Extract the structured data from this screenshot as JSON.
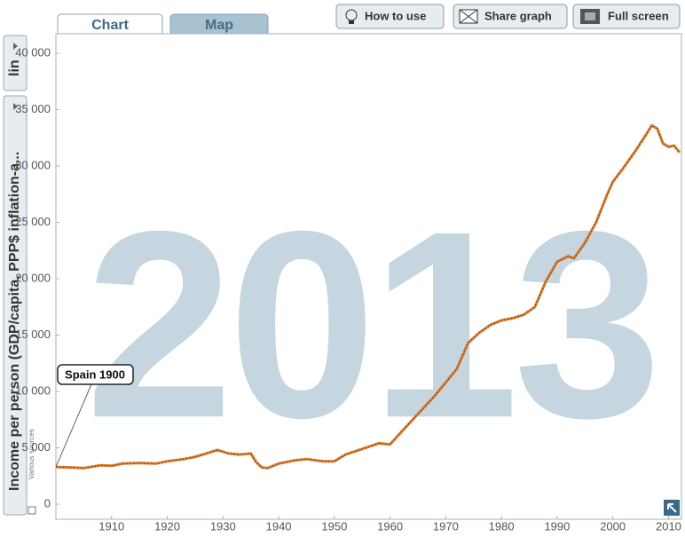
{
  "ui": {
    "tabs": [
      "Chart",
      "Map"
    ],
    "buttons": [
      "How to use",
      "Share graph",
      "Full screen"
    ],
    "scale_selector": "lin",
    "source_note": "Various sources"
  },
  "chart_data": {
    "type": "line",
    "y_label": "Income per person (GDP/capita, PPP$ inflation-a...",
    "year_watermark": "2013",
    "annotation": "Spain 1900",
    "x": [
      1900,
      1903,
      1905,
      1908,
      1910,
      1912,
      1915,
      1918,
      1920,
      1923,
      1925,
      1927,
      1929,
      1931,
      1933,
      1935,
      1936,
      1937,
      1938,
      1940,
      1943,
      1945,
      1948,
      1950,
      1952,
      1955,
      1958,
      1960,
      1962,
      1965,
      1968,
      1970,
      1972,
      1974,
      1976,
      1978,
      1980,
      1982,
      1984,
      1986,
      1988,
      1990,
      1992,
      1993,
      1995,
      1997,
      1999,
      2000,
      2002,
      2004,
      2006,
      2007,
      2008,
      2009,
      2010,
      2011,
      2012
    ],
    "series": [
      {
        "color": "#d9792b",
        "values": [
          3300,
          3250,
          3200,
          3450,
          3400,
          3600,
          3650,
          3600,
          3800,
          4000,
          4200,
          4500,
          4800,
          4500,
          4400,
          4500,
          3700,
          3250,
          3200,
          3600,
          3900,
          4000,
          3800,
          3800,
          4400,
          4900,
          5400,
          5300,
          6400,
          8000,
          9600,
          10800,
          12000,
          14300,
          15200,
          15900,
          16300,
          16500,
          16800,
          17500,
          19800,
          21500,
          22000,
          21800,
          23200,
          25000,
          27500,
          28600,
          29900,
          31300,
          32800,
          33600,
          33300,
          32000,
          31700,
          31800,
          31200
        ]
      }
    ],
    "xlim": [
      1900,
      2012
    ],
    "ylim": [
      0,
      40000
    ],
    "xticks": [
      1910,
      1920,
      1930,
      1940,
      1950,
      1960,
      1970,
      1980,
      1990,
      2000,
      2010
    ],
    "yticks": [
      0,
      {
        "value": 5000,
        "label": "5 000"
      },
      {
        "value": 10000,
        "label": "10 000"
      },
      {
        "value": 15000,
        "label": "15 000"
      },
      {
        "value": 20000,
        "label": "20 000"
      },
      {
        "value": 25000,
        "label": "25 000"
      },
      {
        "value": 30000,
        "label": "30 000"
      },
      {
        "value": 35000,
        "label": "35 000"
      },
      {
        "value": 40000,
        "label": "40 000"
      }
    ]
  }
}
